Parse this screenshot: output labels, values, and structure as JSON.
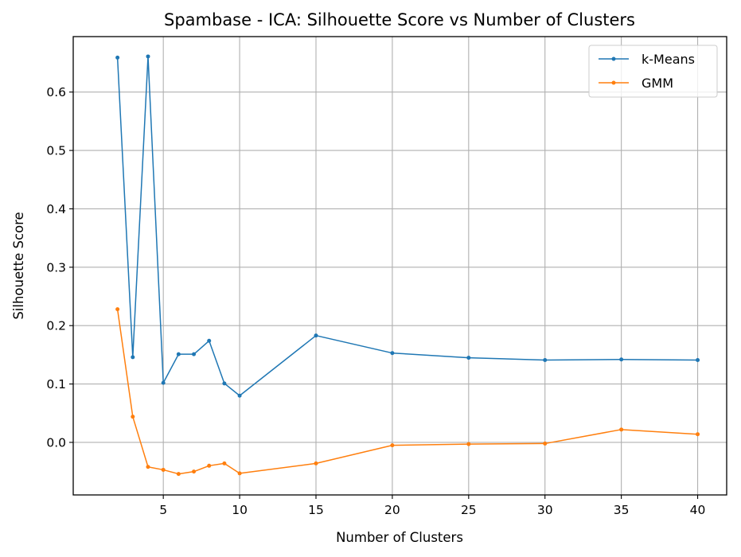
{
  "chart_data": {
    "type": "line",
    "title": "Spambase - ICA: Silhouette Score vs Number of Clusters",
    "xlabel": "Number of Clusters",
    "ylabel": "Silhouette Score",
    "xlim": [
      -0.9,
      41.9
    ],
    "ylim": [
      -0.09,
      0.695
    ],
    "xticks": [
      5,
      10,
      15,
      20,
      25,
      30,
      35,
      40
    ],
    "yticks": [
      0.0,
      0.1,
      0.2,
      0.3,
      0.4,
      0.5,
      0.6
    ],
    "grid": true,
    "legend_position": "top-right",
    "x": [
      2,
      3,
      4,
      5,
      6,
      7,
      8,
      9,
      10,
      15,
      20,
      25,
      30,
      35,
      40
    ],
    "series": [
      {
        "name": "k-Means",
        "color": "#1f77b4",
        "values": [
          0.659,
          0.146,
          0.661,
          0.102,
          0.151,
          0.151,
          0.174,
          0.101,
          0.08,
          0.183,
          0.153,
          0.145,
          0.141,
          0.142,
          0.141
        ]
      },
      {
        "name": "GMM",
        "color": "#ff7f0e",
        "values": [
          0.228,
          0.044,
          -0.042,
          -0.047,
          -0.054,
          -0.05,
          -0.04,
          -0.036,
          -0.053,
          -0.036,
          -0.005,
          -0.003,
          -0.002,
          0.022,
          0.014
        ]
      }
    ]
  }
}
